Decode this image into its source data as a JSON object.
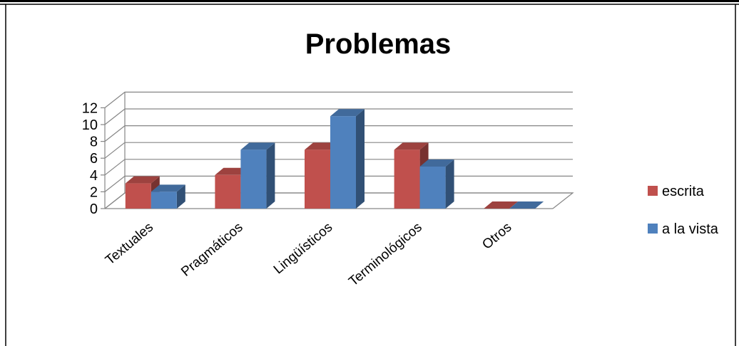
{
  "chart_data": {
    "type": "bar",
    "title": "Problemas",
    "categories": [
      "Textuales",
      "Pragmáticos",
      "Lingüísticos",
      "Terminológicos",
      "Otros"
    ],
    "series": [
      {
        "name": "escrita",
        "values": [
          3,
          4,
          7,
          7,
          0
        ],
        "color": "#c0504d"
      },
      {
        "name": "a la vista",
        "values": [
          2,
          7,
          11,
          5,
          0
        ],
        "color": "#4f81bd"
      }
    ],
    "yticks": [
      0,
      2,
      4,
      6,
      8,
      10,
      12
    ],
    "ylim": [
      0,
      12
    ],
    "grid": true,
    "legend_position": "right"
  }
}
